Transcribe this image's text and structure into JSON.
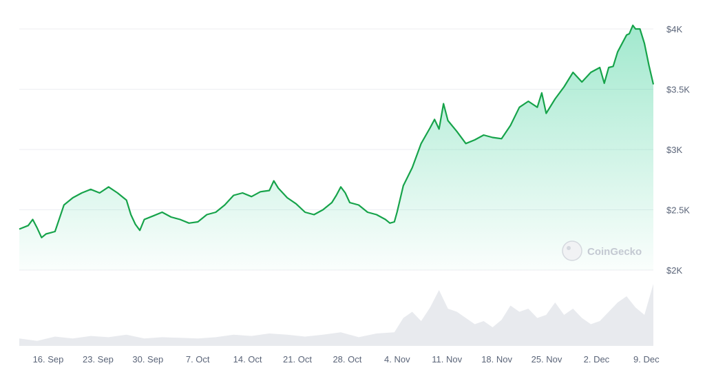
{
  "chart_data": {
    "type": "area",
    "title": "",
    "xlabel": "",
    "ylabel": "",
    "x_ticks": [
      "16. Sep",
      "23. Sep",
      "30. Sep",
      "7. Oct",
      "14. Oct",
      "21. Oct",
      "28. Oct",
      "4. Nov",
      "11. Nov",
      "18. Nov",
      "25. Nov",
      "2. Dec",
      "9. Dec"
    ],
    "y_ticks": [
      "$2K",
      "$2.5K",
      "$3K",
      "$3.5K",
      "$4K"
    ],
    "y_tick_values": [
      2000,
      2500,
      3000,
      3500,
      4000
    ],
    "ylim": [
      2000,
      4000
    ],
    "grid": true,
    "watermark": "CoinGecko",
    "colors": {
      "line": "#16a34a",
      "fill": "#16c784",
      "volume": "#e8eaee",
      "grid": "#eceef2",
      "tick_text": "#5a6478"
    },
    "series": [
      {
        "values": [
          [
            0,
            2340
          ],
          [
            1,
            2370
          ],
          [
            1.5,
            2420
          ],
          [
            2,
            2350
          ],
          [
            2.5,
            2270
          ],
          [
            3,
            2300
          ],
          [
            3.5,
            2310
          ],
          [
            4,
            2320
          ],
          [
            4.5,
            2430
          ],
          [
            5,
            2540
          ],
          [
            6,
            2600
          ],
          [
            6.5,
            2620
          ],
          [
            7,
            2640
          ],
          [
            8,
            2670
          ],
          [
            9,
            2640
          ],
          [
            10,
            2690
          ],
          [
            11,
            2640
          ],
          [
            12,
            2580
          ],
          [
            12.5,
            2460
          ],
          [
            13,
            2380
          ],
          [
            13.5,
            2330
          ],
          [
            14,
            2420
          ],
          [
            15,
            2450
          ],
          [
            16,
            2480
          ],
          [
            17,
            2440
          ],
          [
            18,
            2420
          ],
          [
            19,
            2390
          ],
          [
            20,
            2400
          ],
          [
            21,
            2460
          ],
          [
            22,
            2480
          ],
          [
            23,
            2540
          ],
          [
            24,
            2620
          ],
          [
            25,
            2640
          ],
          [
            26,
            2610
          ],
          [
            27,
            2650
          ],
          [
            28,
            2660
          ],
          [
            28.5,
            2740
          ],
          [
            29,
            2680
          ],
          [
            30,
            2600
          ],
          [
            31,
            2550
          ],
          [
            32,
            2480
          ],
          [
            33,
            2460
          ],
          [
            34,
            2500
          ],
          [
            35,
            2560
          ],
          [
            35.5,
            2620
          ],
          [
            36,
            2690
          ],
          [
            36.5,
            2640
          ],
          [
            37,
            2560
          ],
          [
            38,
            2540
          ],
          [
            39,
            2480
          ],
          [
            40,
            2460
          ],
          [
            41,
            2420
          ],
          [
            41.5,
            2390
          ],
          [
            42,
            2400
          ],
          [
            42.3,
            2480
          ],
          [
            43,
            2700
          ],
          [
            44,
            2850
          ],
          [
            45,
            3050
          ],
          [
            46,
            3180
          ],
          [
            46.5,
            3250
          ],
          [
            47,
            3170
          ],
          [
            47.5,
            3380
          ],
          [
            48,
            3240
          ],
          [
            49,
            3150
          ],
          [
            50,
            3050
          ],
          [
            51,
            3080
          ],
          [
            52,
            3120
          ],
          [
            53,
            3100
          ],
          [
            54,
            3090
          ],
          [
            55,
            3200
          ],
          [
            56,
            3350
          ],
          [
            57,
            3400
          ],
          [
            58,
            3350
          ],
          [
            58.5,
            3470
          ],
          [
            59,
            3300
          ],
          [
            60,
            3420
          ],
          [
            61,
            3520
          ],
          [
            62,
            3640
          ],
          [
            63,
            3560
          ],
          [
            64,
            3640
          ],
          [
            65,
            3680
          ],
          [
            65.5,
            3550
          ],
          [
            66,
            3680
          ],
          [
            66.5,
            3690
          ],
          [
            67,
            3810
          ],
          [
            68,
            3950
          ],
          [
            68.3,
            3960
          ],
          [
            68.7,
            4030
          ],
          [
            69,
            4000
          ],
          [
            69.5,
            4000
          ],
          [
            70,
            3880
          ],
          [
            70.5,
            3700
          ],
          [
            71,
            3540
          ]
        ]
      }
    ],
    "volume": [
      [
        0,
        0.12
      ],
      [
        2,
        0.08
      ],
      [
        4,
        0.15
      ],
      [
        6,
        0.12
      ],
      [
        8,
        0.16
      ],
      [
        10,
        0.14
      ],
      [
        12,
        0.18
      ],
      [
        14,
        0.12
      ],
      [
        16,
        0.14
      ],
      [
        18,
        0.13
      ],
      [
        20,
        0.12
      ],
      [
        22,
        0.14
      ],
      [
        24,
        0.18
      ],
      [
        26,
        0.16
      ],
      [
        28,
        0.2
      ],
      [
        30,
        0.18
      ],
      [
        32,
        0.15
      ],
      [
        34,
        0.18
      ],
      [
        36,
        0.22
      ],
      [
        38,
        0.14
      ],
      [
        40,
        0.2
      ],
      [
        42,
        0.22
      ],
      [
        43,
        0.45
      ],
      [
        44,
        0.55
      ],
      [
        45,
        0.4
      ],
      [
        46,
        0.62
      ],
      [
        47,
        0.9
      ],
      [
        48,
        0.6
      ],
      [
        49,
        0.55
      ],
      [
        50,
        0.45
      ],
      [
        51,
        0.35
      ],
      [
        52,
        0.4
      ],
      [
        53,
        0.3
      ],
      [
        54,
        0.42
      ],
      [
        55,
        0.65
      ],
      [
        56,
        0.55
      ],
      [
        57,
        0.6
      ],
      [
        58,
        0.45
      ],
      [
        59,
        0.5
      ],
      [
        60,
        0.7
      ],
      [
        61,
        0.5
      ],
      [
        62,
        0.6
      ],
      [
        63,
        0.45
      ],
      [
        64,
        0.35
      ],
      [
        65,
        0.4
      ],
      [
        66,
        0.55
      ],
      [
        67,
        0.7
      ],
      [
        68,
        0.8
      ],
      [
        69,
        0.62
      ],
      [
        70,
        0.5
      ],
      [
        71,
        1.0
      ]
    ]
  }
}
